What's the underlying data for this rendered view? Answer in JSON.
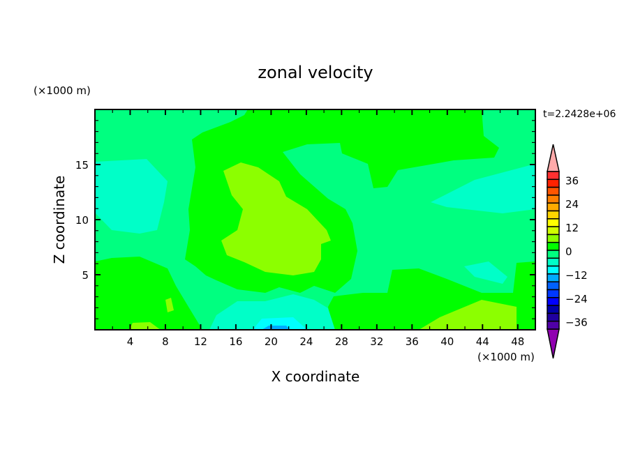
{
  "chart_data": {
    "type": "heatmap",
    "subtype": "filled-contour",
    "title": "zonal velocity",
    "xlabel": "X coordinate",
    "ylabel": "Z coordinate",
    "x_unit_label": "(×1000 m)",
    "y_unit_label": "(×1000 m)",
    "time_label": "t=2.2428e+06",
    "xlim": [
      0,
      50
    ],
    "ylim": [
      0,
      20
    ],
    "xticks": [
      4,
      8,
      12,
      16,
      20,
      24,
      28,
      32,
      36,
      40,
      44,
      48
    ],
    "xminor_step": 2,
    "yticks": [
      5,
      10,
      15
    ],
    "yminor_step": 1,
    "grid": false,
    "colorbar": {
      "levels_top_to_bottom": [
        40,
        36,
        32,
        28,
        24,
        20,
        16,
        12,
        8,
        4,
        0,
        -4,
        -8,
        -12,
        -16,
        -20,
        -24,
        -28,
        -32,
        -36,
        -40
      ],
      "labels": [
        "36",
        "24",
        "12",
        "0",
        "−12",
        "−24",
        "−36"
      ],
      "label_values": [
        36,
        24,
        12,
        0,
        -12,
        -24,
        -36
      ],
      "colors_top_to_bottom": [
        "#ff3030",
        "#ff2200",
        "#ff5500",
        "#ff7f00",
        "#ffaa00",
        "#ffd500",
        "#ffff00",
        "#d0ff00",
        "#8cff00",
        "#00ff00",
        "#00ff80",
        "#00ffc8",
        "#00ffff",
        "#00aaff",
        "#0060ff",
        "#0038ff",
        "#0000ff",
        "#0000aa",
        "#2000a0",
        "#5000a8"
      ],
      "over_color": "#ffaaaa",
      "under_color": "#9000b0",
      "placement": "right"
    },
    "field_summary": {
      "range_observed": [
        -20,
        12
      ],
      "dominant_value_band": [
        -4,
        0
      ],
      "positive_core": {
        "x_range": [
          15,
          27
        ],
        "z_range": [
          6,
          15
        ],
        "band": [
          4,
          8
        ]
      },
      "negative_regions": [
        {
          "x_range": [
            0,
            8
          ],
          "z_range": [
            9,
            15
          ],
          "band": [
            -8,
            -4
          ]
        },
        {
          "x_range": [
            38,
            50
          ],
          "z_range": [
            11,
            15
          ],
          "band": [
            -8,
            -4
          ]
        },
        {
          "x_range": [
            13,
            27
          ],
          "z_range": [
            0,
            3
          ],
          "band": [
            -12,
            -4
          ]
        }
      ]
    }
  }
}
